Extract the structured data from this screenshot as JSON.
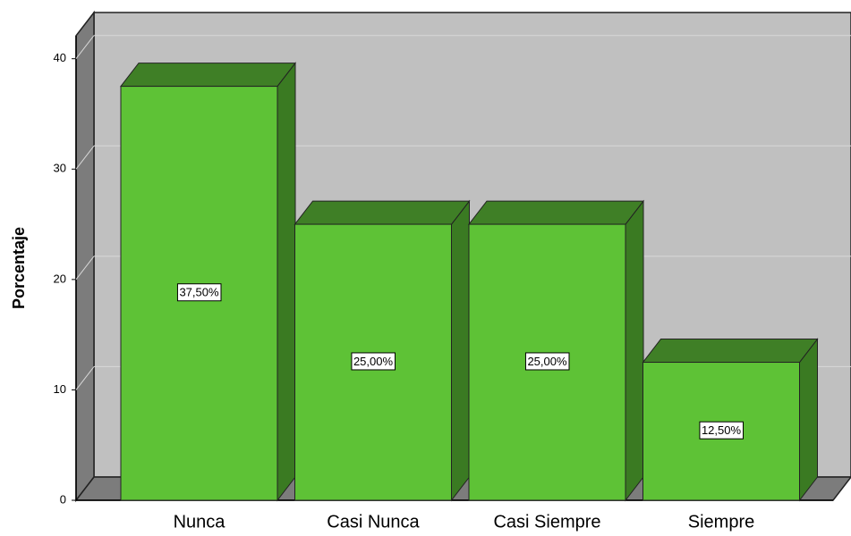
{
  "chart_data": {
    "type": "bar3d",
    "y_label": "Porcentaje",
    "categories": [
      "Nunca",
      "Casi Nunca",
      "Casi Siempre",
      "Siempre"
    ],
    "values": [
      37.5,
      25,
      25,
      12.5
    ],
    "value_labels": [
      "37,50%",
      "25,00%",
      "25,00%",
      "12,50%"
    ],
    "color": "#5ec236",
    "ylim": [
      0,
      42
    ],
    "yticks": [
      0,
      10,
      20,
      30,
      40
    ],
    "grid": true
  }
}
